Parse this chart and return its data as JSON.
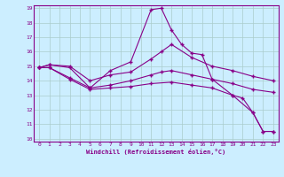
{
  "xlabel": "Windchill (Refroidissement éolien,°C)",
  "bg_color": "#cceeff",
  "line_color": "#880088",
  "grid_color": "#aacccc",
  "xlim": [
    -0.5,
    23.5
  ],
  "ylim": [
    9.8,
    19.2
  ],
  "xticks": [
    0,
    1,
    2,
    3,
    4,
    5,
    6,
    7,
    8,
    9,
    10,
    11,
    12,
    13,
    14,
    15,
    16,
    17,
    18,
    19,
    20,
    21,
    22,
    23
  ],
  "yticks": [
    10,
    11,
    12,
    13,
    14,
    15,
    16,
    17,
    18,
    19
  ],
  "lines": [
    {
      "x": [
        0,
        1,
        3,
        5,
        7,
        9,
        11,
        12,
        13,
        14,
        15,
        16,
        17,
        19,
        21,
        22,
        23
      ],
      "y": [
        14.9,
        15.1,
        14.9,
        13.5,
        14.7,
        15.3,
        18.9,
        19.0,
        17.5,
        16.5,
        15.9,
        15.8,
        14.1,
        13.0,
        11.8,
        10.5,
        10.5
      ]
    },
    {
      "x": [
        0,
        1,
        3,
        5,
        7,
        9,
        11,
        12,
        13,
        15,
        17,
        19,
        21,
        23
      ],
      "y": [
        14.9,
        15.1,
        15.0,
        14.0,
        14.4,
        14.6,
        15.5,
        16.0,
        16.5,
        15.6,
        15.0,
        14.7,
        14.3,
        14.0
      ]
    },
    {
      "x": [
        0,
        1,
        3,
        5,
        7,
        9,
        11,
        12,
        13,
        15,
        17,
        19,
        21,
        23
      ],
      "y": [
        14.9,
        14.9,
        14.2,
        13.5,
        13.7,
        14.0,
        14.4,
        14.6,
        14.7,
        14.4,
        14.1,
        13.8,
        13.4,
        13.2
      ]
    },
    {
      "x": [
        0,
        1,
        3,
        5,
        7,
        9,
        11,
        13,
        15,
        17,
        19,
        20,
        21,
        22,
        23
      ],
      "y": [
        14.9,
        14.9,
        14.1,
        13.4,
        13.5,
        13.6,
        13.8,
        13.9,
        13.7,
        13.5,
        13.0,
        12.8,
        11.8,
        10.5,
        10.5
      ]
    }
  ]
}
